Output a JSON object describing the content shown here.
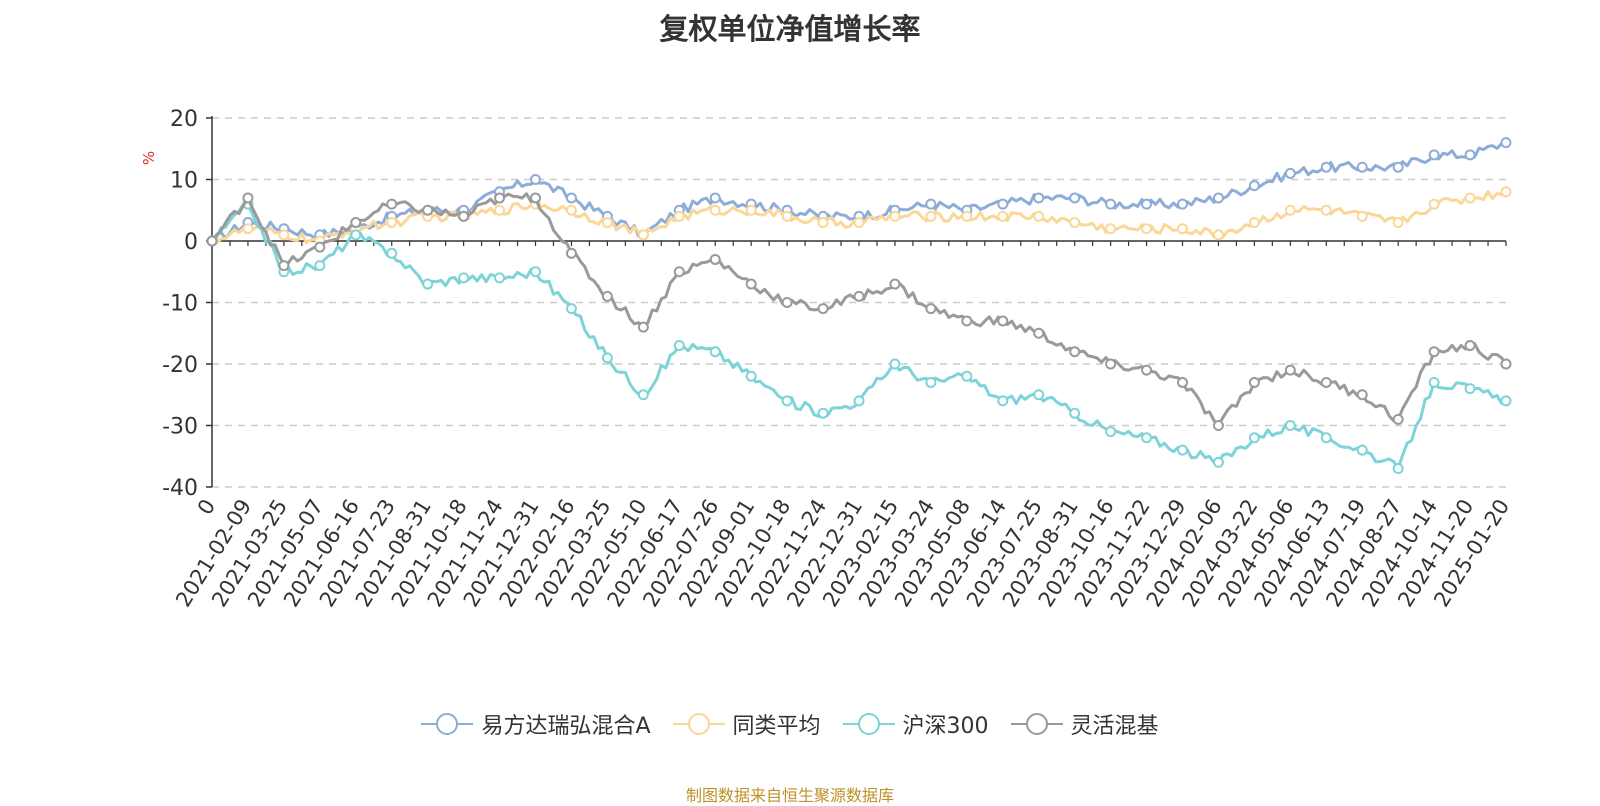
{
  "chart_data": {
    "type": "line",
    "title": "复权单位净值增长率",
    "ylabel": "%",
    "ylim": [
      -40,
      20
    ],
    "yticks": [
      20,
      10,
      0,
      -10,
      -20,
      -30,
      -40
    ],
    "xlabel": "",
    "grid": true,
    "legend_position": "bottom",
    "categories": [
      "0",
      "2021-02-09",
      "2021-03-25",
      "2021-05-07",
      "2021-06-16",
      "2021-07-23",
      "2021-08-31",
      "2021-10-18",
      "2021-11-24",
      "2021-12-31",
      "2022-02-16",
      "2022-03-25",
      "2022-05-10",
      "2022-06-17",
      "2022-07-26",
      "2022-09-01",
      "2022-10-18",
      "2022-11-24",
      "2022-12-31",
      "2023-02-15",
      "2023-03-24",
      "2023-05-08",
      "2023-06-14",
      "2023-07-25",
      "2023-08-31",
      "2023-10-16",
      "2023-11-22",
      "2023-12-29",
      "2024-02-06",
      "2024-03-22",
      "2024-05-06",
      "2024-06-13",
      "2024-07-19",
      "2024-08-27",
      "2024-10-14",
      "2024-11-20",
      "2025-01-20"
    ],
    "series": [
      {
        "name": "易方达瑞弘混合A",
        "color": "#8eacd8",
        "values": [
          0,
          3,
          2,
          1,
          2,
          4,
          5,
          5,
          8,
          10,
          7,
          4,
          1,
          5,
          7,
          6,
          5,
          4,
          4,
          5,
          6,
          5,
          6,
          7,
          7,
          6,
          6,
          6,
          7,
          9,
          11,
          12,
          12,
          12,
          14,
          14,
          16
        ]
      },
      {
        "name": "同类平均",
        "color": "#fad797",
        "values": [
          0,
          2,
          1,
          0,
          2,
          3,
          4,
          4,
          5,
          6,
          5,
          3,
          1,
          4,
          5,
          5,
          4,
          3,
          3,
          4,
          4,
          4,
          4,
          4,
          3,
          2,
          2,
          2,
          1,
          3,
          5,
          5,
          4,
          3,
          6,
          7,
          8
        ]
      },
      {
        "name": "沪深300",
        "color": "#7dd3d8",
        "values": [
          0,
          6,
          -5,
          -4,
          1,
          -2,
          -7,
          -6,
          -6,
          -5,
          -11,
          -19,
          -25,
          -17,
          -18,
          -22,
          -26,
          -28,
          -26,
          -20,
          -23,
          -22,
          -26,
          -25,
          -28,
          -31,
          -32,
          -34,
          -36,
          -32,
          -30,
          -32,
          -34,
          -37,
          -23,
          -24,
          -26
        ]
      },
      {
        "name": "灵活混基",
        "color": "#9a9a9a",
        "values": [
          0,
          7,
          -4,
          -1,
          3,
          6,
          5,
          4,
          7,
          7,
          -2,
          -9,
          -14,
          -5,
          -3,
          -7,
          -10,
          -11,
          -9,
          -7,
          -11,
          -13,
          -13,
          -15,
          -18,
          -20,
          -21,
          -23,
          -30,
          -23,
          -21,
          -23,
          -25,
          -29,
          -18,
          -17,
          -20
        ]
      }
    ]
  },
  "footer": {
    "source": "制图数据来自恒生聚源数据库"
  }
}
